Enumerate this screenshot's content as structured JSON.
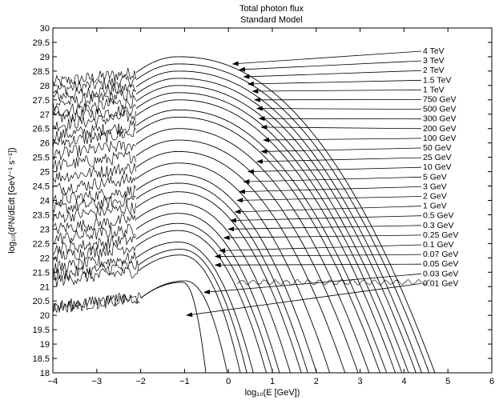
{
  "chart_data": {
    "type": "line",
    "title": "Total photon flux",
    "subtitle": "Standard Model",
    "xlabel": "log_{10}(E [GeV])",
    "ylabel": "log_{10}(d^2N/dEdt [GeV^{-1} s^{-1}])",
    "xlim": [
      -4,
      6
    ],
    "ylim": [
      18,
      30
    ],
    "grid": false,
    "legend": "annotation arrows at right",
    "x_ticks": [
      -4,
      -3,
      -2,
      -1,
      0,
      1,
      2,
      3,
      4,
      5,
      6
    ],
    "y_ticks": [
      18,
      18.5,
      19,
      19.5,
      20,
      20.5,
      21,
      21.5,
      22,
      22.5,
      23,
      23.5,
      24,
      24.5,
      25,
      25.5,
      26,
      26.5,
      27,
      27.5,
      28,
      28.5,
      29,
      29.5,
      30
    ],
    "series": [
      {
        "name": "4 TeV",
        "peak_x": -1.15,
        "peak_y": 29.0,
        "end_x": 4.75,
        "arrow_x": 0.1,
        "arrow_y": 28.75
      },
      {
        "name": "3 TeV",
        "peak_x": -1.15,
        "peak_y": 28.75,
        "end_x": 4.62,
        "arrow_x": 0.25,
        "arrow_y": 28.55
      },
      {
        "name": "2 TeV",
        "peak_x": -1.15,
        "peak_y": 28.5,
        "end_x": 4.45,
        "arrow_x": 0.35,
        "arrow_y": 28.3
      },
      {
        "name": "1.5 TeV",
        "peak_x": -1.15,
        "peak_y": 28.25,
        "end_x": 4.32,
        "arrow_x": 0.45,
        "arrow_y": 28.05
      },
      {
        "name": "1 TeV",
        "peak_x": -1.15,
        "peak_y": 28.0,
        "end_x": 4.15,
        "arrow_x": 0.55,
        "arrow_y": 27.8
      },
      {
        "name": "750 GeV",
        "peak_x": -1.15,
        "peak_y": 27.75,
        "end_x": 4.0,
        "arrow_x": 0.6,
        "arrow_y": 27.5
      },
      {
        "name": "500 GeV",
        "peak_x": -1.15,
        "peak_y": 27.5,
        "end_x": 3.85,
        "arrow_x": 0.65,
        "arrow_y": 27.2
      },
      {
        "name": "300 GeV",
        "peak_x": -1.15,
        "peak_y": 27.15,
        "end_x": 3.65,
        "arrow_x": 0.7,
        "arrow_y": 26.85
      },
      {
        "name": "200 GeV",
        "peak_x": -1.15,
        "peak_y": 26.9,
        "end_x": 3.5,
        "arrow_x": 0.75,
        "arrow_y": 26.55
      },
      {
        "name": "100 GeV",
        "peak_x": -1.15,
        "peak_y": 26.5,
        "end_x": 3.25,
        "arrow_x": 0.8,
        "arrow_y": 26.1
      },
      {
        "name": "50 GeV",
        "peak_x": -1.15,
        "peak_y": 26.1,
        "end_x": 3.0,
        "arrow_x": 0.75,
        "arrow_y": 25.7
      },
      {
        "name": "25 GeV",
        "peak_x": -1.15,
        "peak_y": 25.7,
        "end_x": 2.7,
        "arrow_x": 0.65,
        "arrow_y": 25.35
      },
      {
        "name": "10 GeV",
        "peak_x": -1.15,
        "peak_y": 25.3,
        "end_x": 2.35,
        "arrow_x": 0.45,
        "arrow_y": 25.0
      },
      {
        "name": "5 GeV",
        "peak_x": -1.15,
        "peak_y": 24.9,
        "end_x": 2.05,
        "arrow_x": 0.35,
        "arrow_y": 24.65
      },
      {
        "name": "3 GeV",
        "peak_x": -1.15,
        "peak_y": 24.6,
        "end_x": 1.85,
        "arrow_x": 0.25,
        "arrow_y": 24.3
      },
      {
        "name": "2 GeV",
        "peak_x": -1.15,
        "peak_y": 24.3,
        "end_x": 1.7,
        "arrow_x": 0.2,
        "arrow_y": 24.0
      },
      {
        "name": "1 GeV",
        "peak_x": -1.15,
        "peak_y": 23.9,
        "end_x": 1.45,
        "arrow_x": 0.15,
        "arrow_y": 23.6
      },
      {
        "name": "0.5 GeV",
        "peak_x": -1.15,
        "peak_y": 23.55,
        "end_x": 1.2,
        "arrow_x": 0.05,
        "arrow_y": 23.3
      },
      {
        "name": "0.3 GeV",
        "peak_x": -1.15,
        "peak_y": 23.2,
        "end_x": 1.05,
        "arrow_x": 0.0,
        "arrow_y": 23.0
      },
      {
        "name": "0.25 GeV",
        "peak_x": -1.15,
        "peak_y": 22.95,
        "end_x": 0.9,
        "arrow_x": -0.1,
        "arrow_y": 22.7
      },
      {
        "name": "0.1 GeV",
        "peak_x": -1.15,
        "peak_y": 22.55,
        "end_x": 0.6,
        "arrow_x": -0.2,
        "arrow_y": 22.25
      },
      {
        "name": "0.07 GeV",
        "peak_x": -1.1,
        "peak_y": 22.3,
        "end_x": 0.45,
        "arrow_x": -0.3,
        "arrow_y": 22.05
      },
      {
        "name": "0.05 GeV",
        "peak_x": -1.1,
        "peak_y": 22.1,
        "end_x": 0.3,
        "arrow_x": -0.3,
        "arrow_y": 21.75
      },
      {
        "name": "0.03 GeV",
        "peak_x": -1.0,
        "peak_y": 21.2,
        "end_x": 0.0,
        "arrow_x": -0.55,
        "arrow_y": 20.8
      },
      {
        "name": "0.01 GeV",
        "peak_x": -1.05,
        "peak_y": 21.15,
        "end_x": -0.5,
        "arrow_x": -0.95,
        "arrow_y": 20.0
      }
    ]
  }
}
